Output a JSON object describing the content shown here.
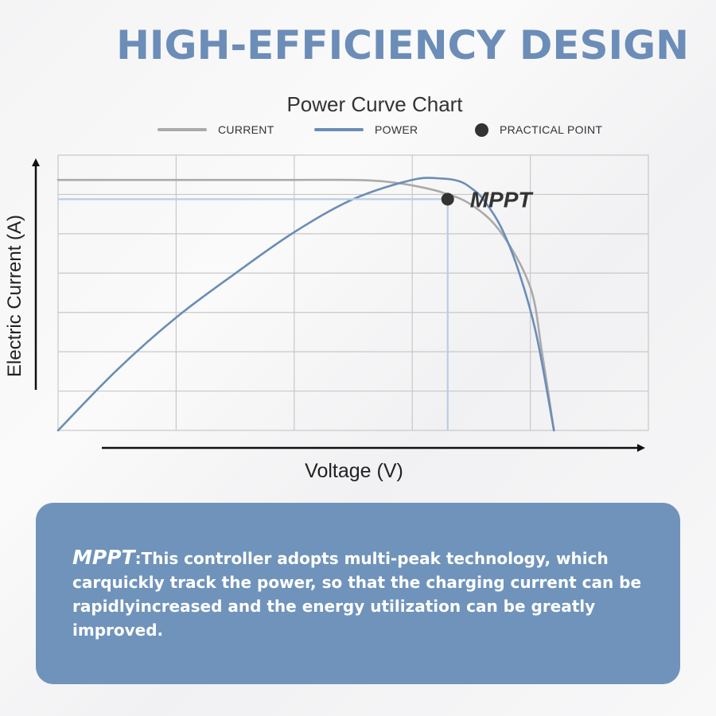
{
  "headline": "HIGH-EFFICIENCY DESIGN",
  "colors": {
    "accent": "#6b8db8",
    "current": "#aaaaaa",
    "power": "#6a8db8",
    "box": "#6f93bb",
    "guide": "#b8cde6"
  },
  "chart_data": {
    "type": "line",
    "title": "Power Curve Chart",
    "xlabel": "Voltage (V)",
    "ylabel": "Electric Current (A)",
    "xlim": [
      0,
      100
    ],
    "ylim": [
      0,
      100
    ],
    "grid": true,
    "legend": [
      {
        "label": "CURRENT",
        "kind": "line",
        "color": "#aaaaaa"
      },
      {
        "label": "POWER",
        "kind": "line",
        "color": "#6a8db8"
      },
      {
        "label": "PRACTICAL POINT",
        "kind": "dot",
        "color": "#333333"
      }
    ],
    "series": [
      {
        "name": "CURRENT",
        "x": [
          0,
          20,
          40,
          50,
          55,
          60,
          65,
          70,
          75,
          80,
          82,
          84
        ],
        "y": [
          91,
          91,
          91,
          91,
          90.5,
          89,
          86.5,
          82,
          72,
          52,
          28,
          0
        ]
      },
      {
        "name": "POWER",
        "x": [
          0,
          10,
          20,
          30,
          40,
          50,
          60,
          65,
          68,
          70,
          72,
          75,
          78,
          81,
          84
        ],
        "y": [
          0,
          22,
          41,
          57,
          72,
          84,
          91,
          91.5,
          90.5,
          88,
          84,
          74,
          58,
          35,
          0
        ]
      }
    ],
    "point": {
      "label": "MPPT",
      "x": 66,
      "y": 84
    }
  },
  "info": {
    "keyword": "MPPT",
    "text": ":This controller adopts multi-peak technology, which carquickly track the power, so that the charging current can be rapidlyincreased and the energy utilization can be greatly improved."
  }
}
